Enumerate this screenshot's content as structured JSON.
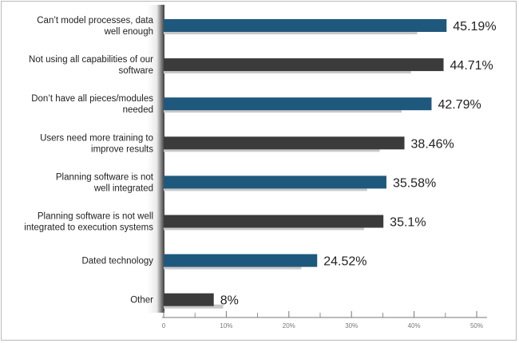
{
  "chart_data": {
    "type": "bar",
    "orientation": "horizontal",
    "categories": [
      [
        "Can’t model processes, data",
        "well enough"
      ],
      [
        "Not using all capabilities of our",
        "software"
      ],
      [
        "Don’t have all pieces/modules",
        "needed"
      ],
      [
        "Users need more training to",
        "improve results"
      ],
      [
        "Planning software is not",
        "well integrated"
      ],
      [
        "Planning software is not well",
        "integrated to execution systems"
      ],
      [
        "Dated technology"
      ],
      [
        "Other"
      ]
    ],
    "series": [
      {
        "values": [
          45.19,
          44.71,
          42.79,
          38.46,
          35.58,
          35.1,
          24.52,
          8
        ],
        "labels": [
          "45.19%",
          "44.71%",
          "42.79%",
          "38.46%",
          "35.58%",
          "35.1%",
          "24.52%",
          "8%"
        ]
      },
      {
        "values": [
          40.5,
          39.5,
          38,
          34.5,
          32.5,
          32,
          22,
          9.5
        ]
      }
    ],
    "x_ticks": [
      "0",
      "10%",
      "20%",
      "30%",
      "40%",
      "50%"
    ],
    "xlim": [
      0,
      50
    ],
    "grid": false,
    "legend": "none",
    "colors": {
      "primary_bar_alternate": [
        "#1f587d",
        "#3b3b3b"
      ],
      "secondary_bar": "#c8c8c8",
      "axis": "#777777"
    }
  }
}
